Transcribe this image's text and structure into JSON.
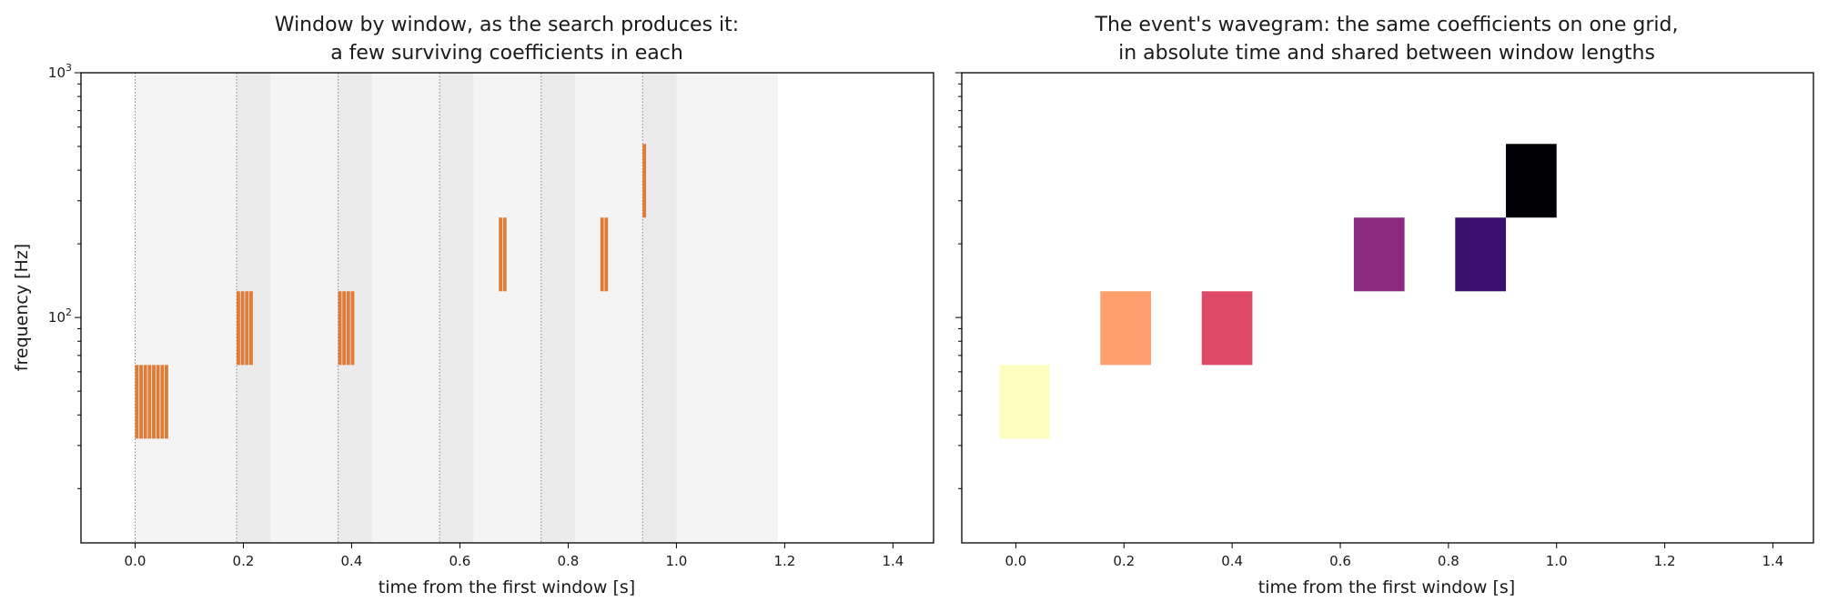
{
  "chart_data": [
    {
      "type": "heatmap",
      "panel": "left",
      "title_lines": [
        "Window by window, as the search produces it:",
        "a few surviving coefficients in each"
      ],
      "xlabel": "time from the first window [s]",
      "ylabel": "frequency [Hz]",
      "xlim": [
        -0.1,
        1.475
      ],
      "ylim": [
        12,
        1000
      ],
      "yscale": "log",
      "xticks": [
        0.0,
        0.2,
        0.4,
        0.6,
        0.8,
        1.0,
        1.2,
        1.4
      ],
      "xtick_labels": [
        "0.0",
        "0.2",
        "0.4",
        "0.6",
        "0.8",
        "1.0",
        "1.2",
        "1.4"
      ],
      "yticks": [
        {
          "value": 100,
          "base": "10",
          "exp": "2"
        },
        {
          "value": 1000,
          "base": "10",
          "exp": "3"
        }
      ],
      "window_starts": [
        0.0,
        0.1875,
        0.375,
        0.5625,
        0.75,
        0.9375
      ],
      "window_length": 0.25,
      "windows_end": 1.1875,
      "window_shade_color": "#f4f4f4",
      "window_overlap_color": "#ebebeb",
      "window_start_line_color": "#888888",
      "coefficient_color": "#e07b39",
      "coefficients": [
        {
          "t_start": 0.0,
          "t_end": 0.0625,
          "f_low": 32,
          "f_high": 64,
          "stripes": 8
        },
        {
          "t_start": 0.1875,
          "t_end": 0.2188,
          "f_low": 64,
          "f_high": 128,
          "stripes": 4
        },
        {
          "t_start": 0.375,
          "t_end": 0.4063,
          "f_low": 64,
          "f_high": 128,
          "stripes": 4
        },
        {
          "t_start": 0.6719,
          "t_end": 0.6875,
          "f_low": 128,
          "f_high": 256,
          "stripes": 2
        },
        {
          "t_start": 0.8594,
          "t_end": 0.875,
          "f_low": 128,
          "f_high": 256,
          "stripes": 2
        },
        {
          "t_start": 0.9375,
          "t_end": 0.9453,
          "f_low": 256,
          "f_high": 512,
          "stripes": 1
        }
      ]
    },
    {
      "type": "heatmap",
      "panel": "right",
      "title_lines": [
        "The event's wavegram: the same coefficients on one grid,",
        "in absolute time and shared between window lengths"
      ],
      "xlabel": "time from the first window [s]",
      "ylabel": "",
      "xlim": [
        -0.1,
        1.475
      ],
      "ylim": [
        12,
        1000
      ],
      "yscale": "log",
      "xticks": [
        0.0,
        0.2,
        0.4,
        0.6,
        0.8,
        1.0,
        1.2,
        1.4
      ],
      "xtick_labels": [
        "0.0",
        "0.2",
        "0.4",
        "0.6",
        "0.8",
        "1.0",
        "1.2",
        "1.4"
      ],
      "colormap": "magma",
      "tiles": [
        {
          "t_start": -0.03,
          "t_end": 0.0625,
          "f_low": 32,
          "f_high": 64,
          "color": "#fcfdbf"
        },
        {
          "t_start": 0.1563,
          "t_end": 0.25,
          "f_low": 64,
          "f_high": 128,
          "color": "#fe9f6d"
        },
        {
          "t_start": 0.3438,
          "t_end": 0.4375,
          "f_low": 64,
          "f_high": 128,
          "color": "#de4968"
        },
        {
          "t_start": 0.625,
          "t_end": 0.7188,
          "f_low": 128,
          "f_high": 256,
          "color": "#8c2981"
        },
        {
          "t_start": 0.8125,
          "t_end": 0.9063,
          "f_low": 128,
          "f_high": 256,
          "color": "#3b0f70"
        },
        {
          "t_start": 0.9063,
          "t_end": 1.0,
          "f_low": 256,
          "f_high": 512,
          "color": "#000004"
        }
      ]
    }
  ]
}
